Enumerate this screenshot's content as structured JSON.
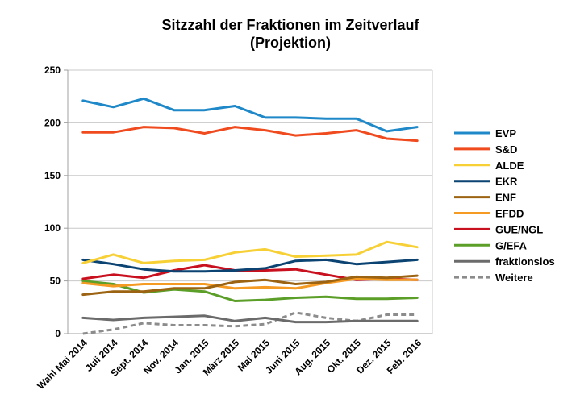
{
  "chart_data": {
    "type": "line",
    "title": "Sitzzahl der Fraktionen im Zeitverlauf",
    "subtitle": "(Projektion)",
    "xlabel": "",
    "ylabel": "",
    "ylim": [
      0,
      250
    ],
    "yticks": [
      0,
      50,
      100,
      150,
      200,
      250
    ],
    "grid": "horizontal",
    "legend_position": "right",
    "categories": [
      "Wahl Mai 2014",
      "Juli 2014",
      "Sept. 2014",
      "Nov. 2014",
      "Jan. 2015",
      "März 2015",
      "Mai 2015",
      "Juni 2015",
      "Aug. 2015",
      "Okt. 2015",
      "Dez. 2015",
      "Feb. 2016"
    ],
    "series": [
      {
        "name": "EVP",
        "color": "#1e88c8",
        "dashed": false,
        "values": [
          221,
          215,
          223,
          212,
          212,
          216,
          205,
          205,
          204,
          204,
          192,
          196
        ]
      },
      {
        "name": "S&D",
        "color": "#f04a1f",
        "dashed": false,
        "values": [
          191,
          191,
          196,
          195,
          190,
          196,
          193,
          188,
          190,
          193,
          185,
          183
        ]
      },
      {
        "name": "ALDE",
        "color": "#f7d036",
        "dashed": false,
        "values": [
          67,
          75,
          67,
          69,
          70,
          77,
          80,
          73,
          74,
          75,
          87,
          82
        ]
      },
      {
        "name": "EKR",
        "color": "#0b4372",
        "dashed": false,
        "values": [
          70,
          66,
          61,
          59,
          59,
          60,
          62,
          69,
          70,
          66,
          68,
          70
        ]
      },
      {
        "name": "ENF",
        "color": "#9c6412",
        "dashed": false,
        "values": [
          37,
          40,
          40,
          43,
          43,
          49,
          51,
          47,
          49,
          54,
          53,
          55
        ]
      },
      {
        "name": "EFDD",
        "color": "#f59a23",
        "dashed": false,
        "values": [
          48,
          45,
          47,
          47,
          47,
          43,
          44,
          43,
          48,
          52,
          51,
          51
        ]
      },
      {
        "name": "GUE/NGL",
        "color": "#c8101e",
        "dashed": false,
        "values": [
          52,
          56,
          53,
          60,
          65,
          60,
          60,
          61,
          56,
          51,
          52,
          51
        ]
      },
      {
        "name": "G/EFA",
        "color": "#5b9e28",
        "dashed": false,
        "values": [
          50,
          47,
          39,
          42,
          40,
          31,
          32,
          34,
          35,
          33,
          33,
          34
        ]
      },
      {
        "name": "fraktionslos",
        "color": "#6b6b6b",
        "dashed": false,
        "values": [
          15,
          13,
          15,
          16,
          17,
          12,
          15,
          11,
          11,
          12,
          12,
          12
        ]
      },
      {
        "name": "Weitere",
        "color": "#8c8c8c",
        "dashed": true,
        "values": [
          0,
          4,
          10,
          8,
          8,
          7,
          9,
          20,
          15,
          12,
          18,
          18
        ]
      }
    ]
  }
}
